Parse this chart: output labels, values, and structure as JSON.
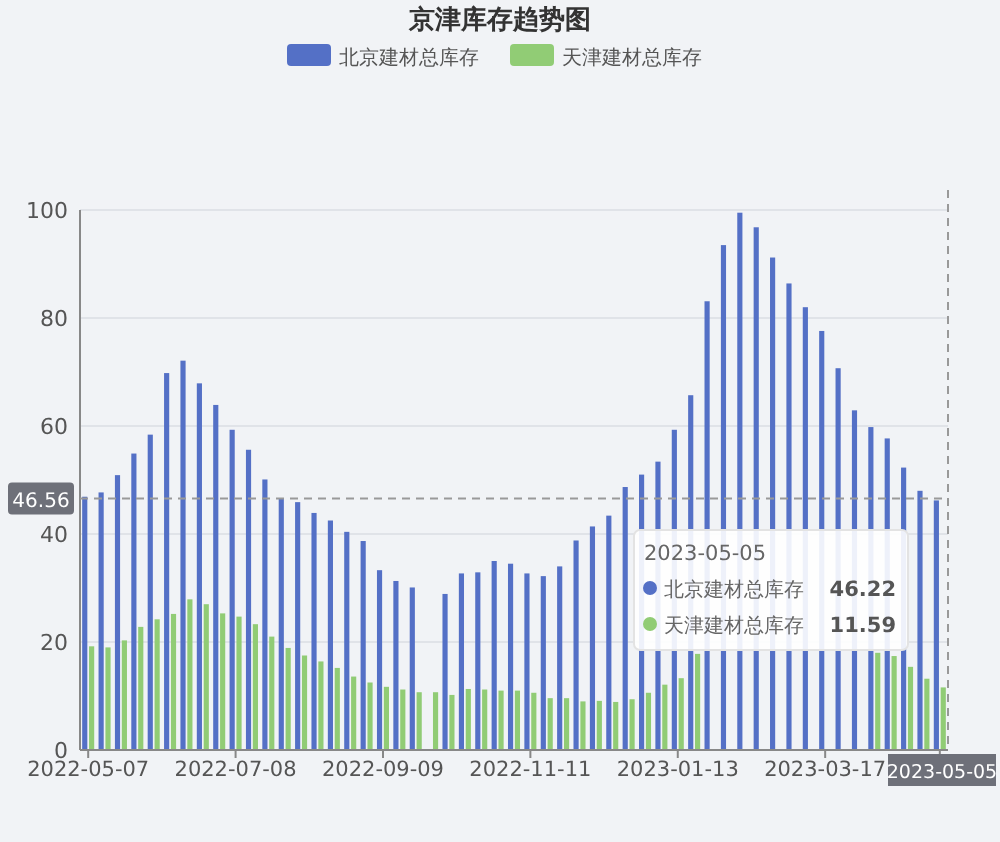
{
  "chart_data": {
    "type": "bar",
    "title": "京津库存趋势图",
    "categories": [
      "2022-05-07",
      null,
      null,
      null,
      null,
      null,
      null,
      null,
      null,
      "2022-07-08",
      null,
      null,
      null,
      null,
      null,
      null,
      null,
      null,
      "2022-09-09",
      null,
      null,
      null,
      null,
      null,
      null,
      null,
      null,
      "2022-11-11",
      null,
      null,
      null,
      null,
      null,
      null,
      null,
      null,
      "2023-01-13",
      null,
      null,
      null,
      null,
      null,
      null,
      null,
      null,
      "2023-03-17",
      null,
      null,
      null,
      null,
      null,
      null,
      "2023-05-05"
    ],
    "series": [
      {
        "name": "北京建材总库存",
        "color": "#5470c6",
        "values": [
          46.9,
          47.7,
          50.9,
          54.9,
          58.4,
          69.8,
          72.1,
          67.9,
          63.9,
          59.3,
          55.6,
          50.1,
          46.5,
          45.9,
          43.9,
          42.5,
          40.4,
          38.7,
          33.3,
          31.3,
          30.1,
          null,
          28.9,
          32.7,
          32.9,
          35.0,
          34.5,
          32.7,
          32.2,
          34.0,
          38.8,
          41.4,
          43.4,
          48.7,
          51.0,
          53.4,
          59.3,
          65.7,
          83.1,
          93.5,
          99.5,
          96.8,
          91.2,
          86.4,
          82.0,
          77.6,
          70.7,
          62.9,
          59.8,
          57.7,
          52.3,
          48.0,
          46.22
        ]
      },
      {
        "name": "天津建材总库存",
        "color": "#91cc75",
        "values": [
          19.2,
          19.0,
          20.3,
          22.8,
          24.2,
          25.2,
          27.9,
          27.0,
          25.3,
          24.7,
          23.3,
          21.0,
          18.9,
          17.5,
          16.4,
          15.2,
          13.6,
          12.5,
          11.7,
          11.2,
          10.7,
          10.7,
          10.2,
          11.3,
          11.2,
          11.0,
          11.0,
          10.6,
          9.6,
          9.6,
          9.0,
          9.1,
          8.9,
          9.4,
          10.6,
          12.1,
          13.3,
          17.8,
          null,
          null,
          null,
          null,
          null,
          null,
          null,
          null,
          null,
          null,
          18.0,
          17.4,
          15.4,
          13.2,
          11.59
        ]
      }
    ],
    "ylim": [
      0,
      100
    ],
    "yticks": [
      0,
      20,
      40,
      60,
      80,
      100
    ],
    "grid": "y",
    "legend": "top",
    "ref_lines": [
      {
        "axis": "y",
        "value": 46.56,
        "label": "46.56",
        "line_style": "dashed"
      },
      {
        "axis": "x",
        "value": "2023-05-05",
        "line_style": "dashed"
      }
    ],
    "annotations": [
      "2023-05-05",
      "北京建材总库存",
      "46.22",
      "天津建材总库存",
      "11.59"
    ]
  }
}
